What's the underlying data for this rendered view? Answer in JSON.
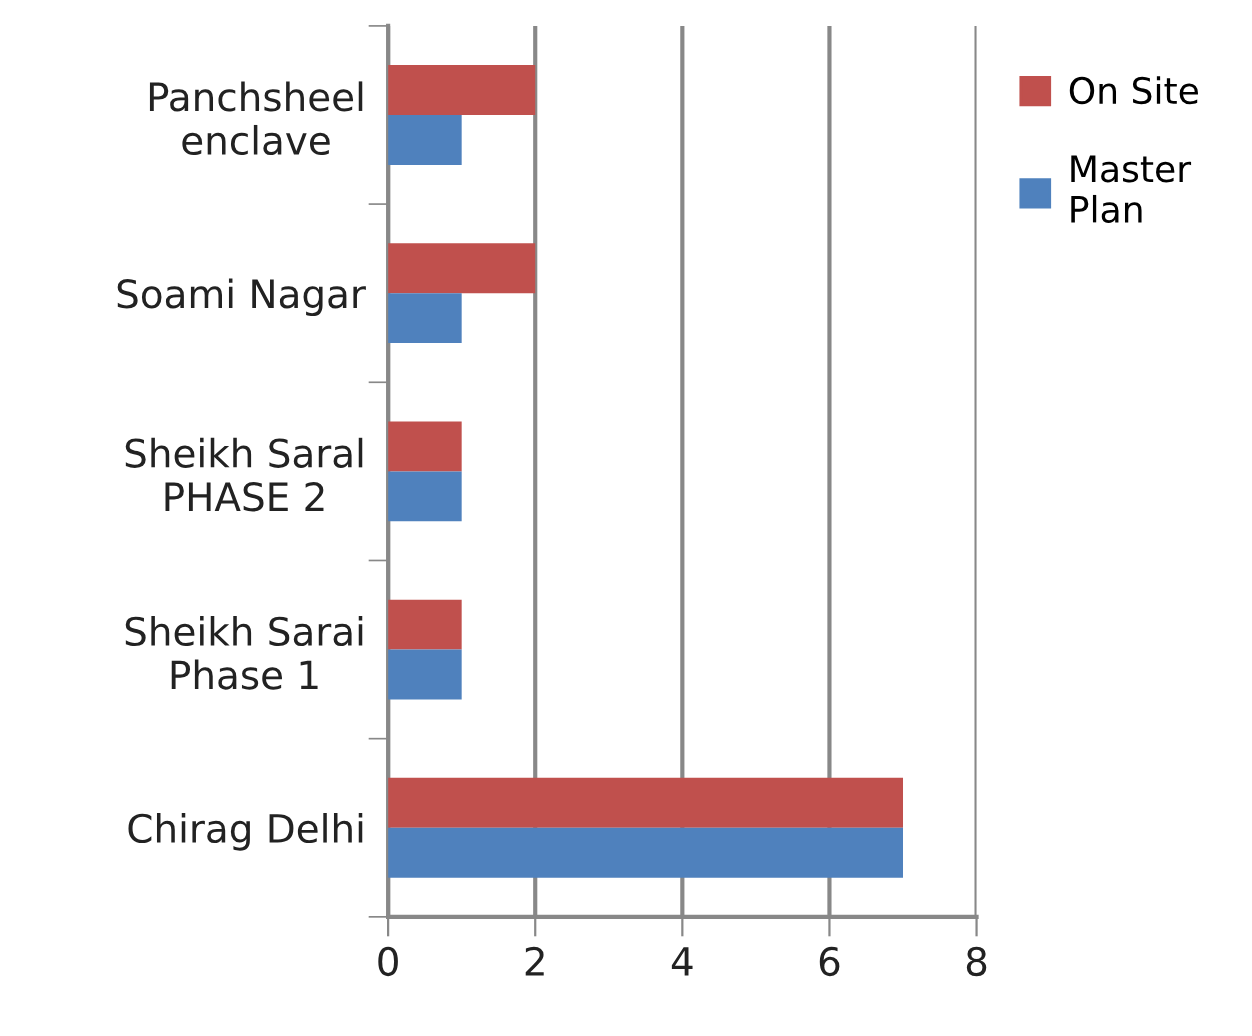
{
  "chart_data": {
    "type": "bar",
    "orientation": "horizontal",
    "categories": [
      "Panchsheel\nenclave",
      "Soami Nagar",
      "Sheikh Saral\nPHASE 2",
      "Sheikh Sarai\nPhase 1",
      "Chirag Delhi"
    ],
    "series": [
      {
        "name": "On Site",
        "color": "#c0504d",
        "values": [
          2,
          2,
          1,
          1,
          7
        ]
      },
      {
        "name": "Master\nPlan",
        "color": "#4f81bd",
        "values": [
          1,
          1,
          1,
          1,
          7
        ]
      }
    ],
    "xlim": [
      0,
      8
    ],
    "xticks": [
      0,
      2,
      4,
      6,
      8
    ],
    "grid": "x",
    "legend": "top right"
  }
}
